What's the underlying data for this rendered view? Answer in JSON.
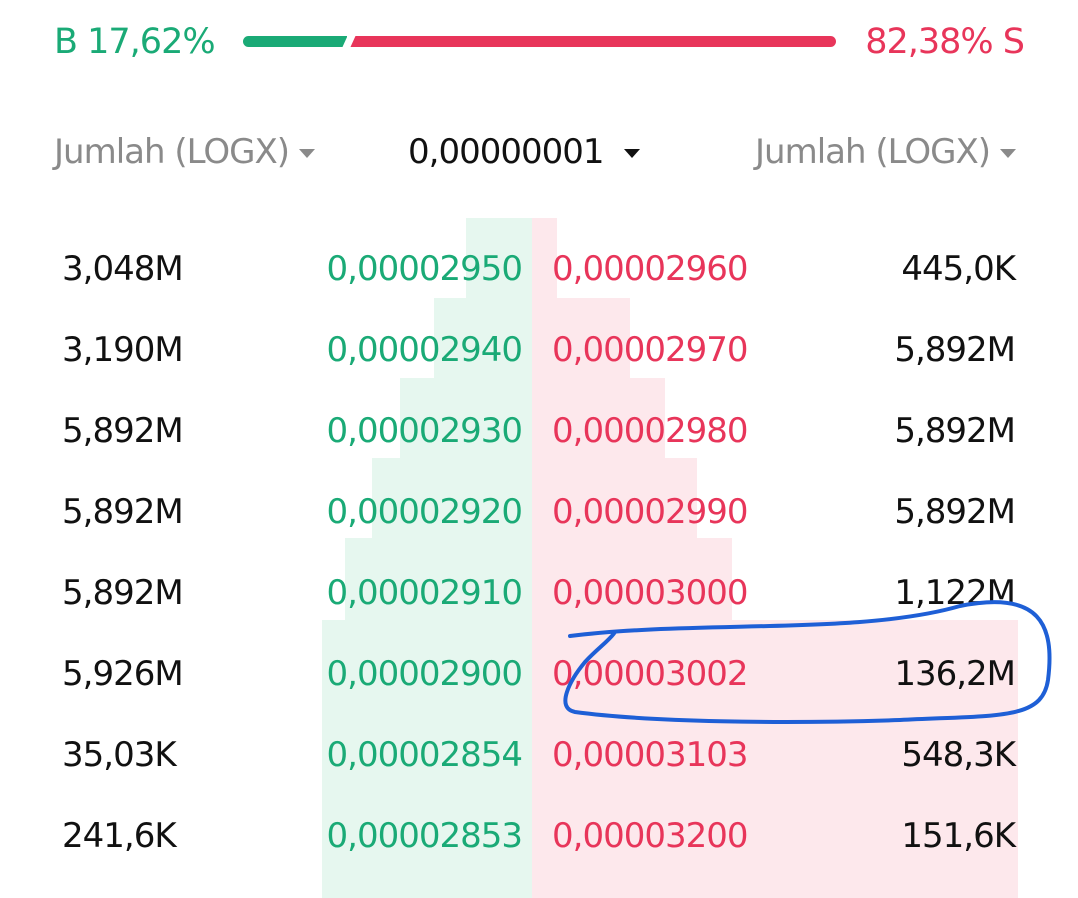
{
  "ratio": {
    "buy": {
      "value": 17.62,
      "label": "B 17,62%"
    },
    "sell": {
      "value": 82.38,
      "label": "82,38% S"
    }
  },
  "header": {
    "left": "Jumlah (LOGX)",
    "center": "0,00000001",
    "right": "Jumlah (LOGX)"
  },
  "rows": [
    [
      "3,048M",
      "0,00002950",
      "0,00002960",
      "445,0K"
    ],
    [
      "3,190M",
      "0,00002940",
      "0,00002970",
      "5,892M"
    ],
    [
      "5,892M",
      "0,00002930",
      "0,00002980",
      "5,892M"
    ],
    [
      "5,892M",
      "0,00002920",
      "0,00002990",
      "5,892M"
    ],
    [
      "5,892M",
      "0,00002910",
      "0,00003000",
      "1,122M"
    ],
    [
      "5,926M",
      "0,00002900",
      "0,00003002",
      "136,2M"
    ],
    [
      "35,03K",
      "0,00002854",
      "0,00003103",
      "548,3K"
    ],
    [
      "241,6K",
      "0,00002853",
      "0,00003200",
      "151,6K"
    ]
  ]
}
